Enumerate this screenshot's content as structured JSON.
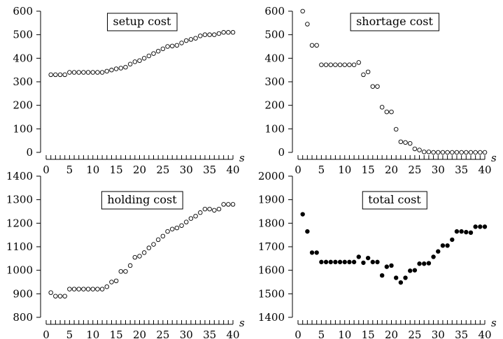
{
  "chart_data": [
    {
      "type": "scatter",
      "title": "setup cost",
      "xlabel": "s",
      "ylabel": "",
      "xlim": [
        0,
        40
      ],
      "ylim": [
        0,
        600
      ],
      "xticks": [
        0,
        5,
        10,
        15,
        20,
        25,
        30,
        35,
        40
      ],
      "yticks": [
        0,
        100,
        200,
        300,
        400,
        500,
        600
      ],
      "marker": "open-circle",
      "x": [
        1,
        2,
        3,
        4,
        5,
        6,
        7,
        8,
        9,
        10,
        11,
        12,
        13,
        14,
        15,
        16,
        17,
        18,
        19,
        20,
        21,
        22,
        23,
        24,
        25,
        26,
        27,
        28,
        29,
        30,
        31,
        32,
        33,
        34,
        35,
        36,
        37,
        38,
        39,
        40
      ],
      "y": [
        330,
        330,
        330,
        330,
        340,
        340,
        340,
        340,
        340,
        340,
        340,
        340,
        345,
        350,
        355,
        358,
        362,
        375,
        385,
        390,
        400,
        410,
        420,
        430,
        440,
        450,
        452,
        455,
        465,
        475,
        480,
        485,
        495,
        500,
        500,
        500,
        505,
        510,
        510,
        510
      ]
    },
    {
      "type": "scatter",
      "title": "shortage cost",
      "xlabel": "s",
      "ylabel": "",
      "xlim": [
        0,
        40
      ],
      "ylim": [
        0,
        600
      ],
      "xticks": [
        0,
        5,
        10,
        15,
        20,
        25,
        30,
        35,
        40
      ],
      "yticks": [
        0,
        100,
        200,
        300,
        400,
        500,
        600
      ],
      "marker": "open-circle",
      "x": [
        1,
        2,
        3,
        4,
        5,
        6,
        7,
        8,
        9,
        10,
        11,
        12,
        13,
        14,
        15,
        16,
        17,
        18,
        19,
        20,
        21,
        22,
        23,
        24,
        25,
        26,
        27,
        28,
        29,
        30,
        31,
        32,
        33,
        34,
        35,
        36,
        37,
        38,
        39,
        40
      ],
      "y": [
        600,
        545,
        455,
        455,
        372,
        372,
        372,
        372,
        372,
        372,
        372,
        372,
        382,
        330,
        342,
        280,
        280,
        192,
        172,
        172,
        98,
        45,
        42,
        38,
        15,
        10,
        2,
        2,
        0,
        0,
        0,
        0,
        0,
        0,
        0,
        0,
        0,
        0,
        0,
        0
      ]
    },
    {
      "type": "scatter",
      "title": "holding cost",
      "xlabel": "s",
      "ylabel": "",
      "xlim": [
        0,
        40
      ],
      "ylim": [
        800,
        1400
      ],
      "xticks": [
        0,
        5,
        10,
        15,
        20,
        25,
        30,
        35,
        40
      ],
      "yticks": [
        800,
        900,
        1000,
        1100,
        1200,
        1300,
        1400
      ],
      "marker": "open-circle",
      "x": [
        1,
        2,
        3,
        4,
        5,
        6,
        7,
        8,
        9,
        10,
        11,
        12,
        13,
        14,
        15,
        16,
        17,
        18,
        19,
        20,
        21,
        22,
        23,
        24,
        25,
        26,
        27,
        28,
        29,
        30,
        31,
        32,
        33,
        34,
        35,
        36,
        37,
        38,
        39,
        40
      ],
      "y": [
        905,
        890,
        890,
        890,
        920,
        920,
        920,
        920,
        920,
        920,
        920,
        920,
        930,
        950,
        955,
        995,
        995,
        1020,
        1055,
        1060,
        1075,
        1095,
        1110,
        1130,
        1145,
        1165,
        1175,
        1180,
        1190,
        1205,
        1220,
        1230,
        1245,
        1260,
        1260,
        1255,
        1260,
        1280,
        1280,
        1280
      ]
    },
    {
      "type": "scatter",
      "title": "total cost",
      "xlabel": "s",
      "ylabel": "",
      "xlim": [
        0,
        40
      ],
      "ylim": [
        1400,
        2000
      ],
      "xticks": [
        0,
        5,
        10,
        15,
        20,
        25,
        30,
        35,
        40
      ],
      "yticks": [
        1400,
        1500,
        1600,
        1700,
        1800,
        1900,
        2000
      ],
      "marker": "filled-circle",
      "x": [
        1,
        2,
        3,
        4,
        5,
        6,
        7,
        8,
        9,
        10,
        11,
        12,
        13,
        14,
        15,
        16,
        17,
        18,
        19,
        20,
        21,
        22,
        23,
        24,
        25,
        26,
        27,
        28,
        29,
        30,
        31,
        32,
        33,
        34,
        35,
        36,
        37,
        38,
        39,
        40
      ],
      "y": [
        1838,
        1765,
        1675,
        1675,
        1635,
        1635,
        1635,
        1635,
        1635,
        1635,
        1635,
        1635,
        1657,
        1632,
        1652,
        1635,
        1635,
        1578,
        1615,
        1620,
        1568,
        1548,
        1568,
        1598,
        1600,
        1628,
        1628,
        1630,
        1657,
        1680,
        1705,
        1705,
        1730,
        1765,
        1765,
        1762,
        1760,
        1785,
        1785,
        1785
      ]
    }
  ]
}
